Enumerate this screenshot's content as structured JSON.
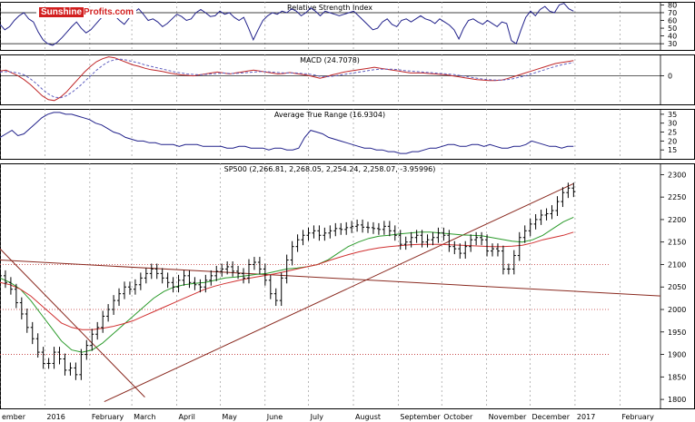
{
  "watermark": {
    "brand": "Sunshine",
    "suffix": "Profits.com",
    "color": "#d21f1f"
  },
  "chart_data": [
    {
      "panel": "rsi",
      "type": "line",
      "title": "Relative Strength Index",
      "ylim": [
        22,
        84
      ],
      "yticks": [
        30,
        40,
        50,
        60,
        70,
        80
      ],
      "ref_lines": [
        30,
        70
      ],
      "series": [
        {
          "color": "#20208a",
          "values": [
            55,
            48,
            52,
            60,
            66,
            70,
            62,
            58,
            45,
            35,
            30,
            28,
            32,
            38,
            45,
            52,
            58,
            50,
            44,
            48,
            55,
            62,
            68,
            72,
            66,
            60,
            55,
            63,
            70,
            75,
            68,
            60,
            62,
            58,
            52,
            56,
            62,
            68,
            65,
            60,
            62,
            70,
            74,
            70,
            65,
            66,
            72,
            68,
            70,
            64,
            60,
            64,
            50,
            35,
            48,
            60,
            66,
            70,
            68,
            72,
            70,
            75,
            72,
            66,
            70,
            76,
            72,
            66,
            72,
            70,
            68,
            66,
            68,
            70,
            72,
            66,
            60,
            54,
            48,
            50,
            58,
            62,
            55,
            52,
            60,
            62,
            58,
            62,
            66,
            62,
            60,
            56,
            62,
            58,
            54,
            48,
            36,
            50,
            60,
            62,
            58,
            55,
            60,
            56,
            52,
            58,
            56,
            34,
            30,
            48,
            64,
            72,
            66,
            74,
            78,
            72,
            70,
            80,
            82,
            75,
            72
          ]
        }
      ]
    },
    {
      "panel": "macd",
      "type": "line",
      "title": "MACD (24.7078)",
      "ylim": [
        -60,
        45
      ],
      "yticks": [
        0
      ],
      "series": [
        {
          "color": "#c0282a",
          "values": [
            10,
            12,
            6,
            0,
            -8,
            -18,
            -30,
            -42,
            -50,
            -52,
            -45,
            -34,
            -20,
            -6,
            8,
            20,
            30,
            36,
            40,
            38,
            33,
            28,
            23,
            20,
            16,
            13,
            11,
            9,
            6,
            4,
            2,
            1,
            0,
            2,
            4,
            6,
            8,
            6,
            4,
            6,
            8,
            10,
            12,
            10,
            8,
            6,
            4,
            5,
            7,
            5,
            3,
            1,
            -2,
            -5,
            -2,
            2,
            5,
            8,
            10,
            12,
            14,
            16,
            18,
            16,
            14,
            12,
            10,
            8,
            6,
            6,
            6,
            5,
            4,
            3,
            2,
            0,
            -2,
            -4,
            -6,
            -8,
            -9,
            -10,
            -10,
            -9,
            -6,
            -2,
            2,
            6,
            10,
            14,
            18,
            22,
            26,
            28,
            30,
            32
          ]
        },
        {
          "color": "#6060c0",
          "dashed": true,
          "values": [
            8,
            9,
            8,
            6,
            2,
            -6,
            -16,
            -28,
            -38,
            -45,
            -46,
            -42,
            -34,
            -24,
            -12,
            0,
            12,
            22,
            30,
            34,
            35,
            33,
            30,
            27,
            23,
            20,
            17,
            14,
            11,
            8,
            6,
            4,
            3,
            2,
            3,
            4,
            5,
            6,
            5,
            5,
            6,
            7,
            8,
            9,
            9,
            8,
            7,
            6,
            6,
            6,
            5,
            4,
            2,
            -1,
            -2,
            -1,
            1,
            3,
            5,
            7,
            9,
            11,
            13,
            14,
            14,
            14,
            13,
            11,
            10,
            9,
            8,
            7,
            6,
            5,
            4,
            3,
            1,
            -1,
            -3,
            -5,
            -7,
            -8,
            -9,
            -9,
            -8,
            -6,
            -3,
            0,
            4,
            8,
            12,
            16,
            20,
            23,
            26,
            28
          ]
        }
      ]
    },
    {
      "panel": "atr",
      "type": "line",
      "title": "Average True Range (16.9304)",
      "ylim": [
        10,
        38
      ],
      "yticks": [
        15,
        20,
        25,
        30,
        35
      ],
      "series": [
        {
          "color": "#20208a",
          "values": [
            22,
            24,
            26,
            23,
            24,
            27,
            30,
            33,
            35,
            36,
            36,
            35,
            35,
            34,
            33,
            32,
            30,
            29,
            27,
            25,
            24,
            22,
            21,
            20,
            20,
            19,
            19,
            18,
            18,
            18,
            17,
            18,
            18,
            18,
            17,
            17,
            17,
            17,
            16,
            16,
            17,
            17,
            16,
            16,
            16,
            15,
            16,
            16,
            15,
            15,
            16,
            22,
            26,
            25,
            24,
            22,
            21,
            20,
            19,
            18,
            17,
            16,
            16,
            15,
            15,
            14,
            14,
            13,
            13,
            14,
            14,
            15,
            16,
            16,
            17,
            18,
            18,
            17,
            17,
            18,
            18,
            17,
            18,
            17,
            16,
            16,
            17,
            17,
            18,
            20,
            19,
            18,
            17,
            17,
            16,
            17,
            17
          ]
        }
      ]
    },
    {
      "panel": "price",
      "type": "candlestick",
      "title": "SP500 (2,266.81, 2,268.05, 2,254.24, 2,258.07, -3.95996)",
      "ylim": [
        1780,
        2325
      ],
      "yticks": [
        1800,
        1850,
        1900,
        1950,
        2000,
        2050,
        2100,
        2150,
        2200,
        2250,
        2300
      ],
      "hlines": [
        1900,
        2000,
        2100
      ],
      "trendlines": [
        {
          "from": [
            "2015-12-01",
            2110
          ],
          "to": [
            "2017-03-01",
            2030
          ],
          "color": "#8a2a20"
        },
        {
          "from": [
            "2016-02-11",
            1795
          ],
          "to": [
            "2016-12-31",
            2280
          ],
          "color": "#8a2a20"
        },
        {
          "from": [
            "2015-12-01",
            2135
          ],
          "to": [
            "2016-03-10",
            1805
          ],
          "color": "#8a2a20"
        }
      ],
      "ma_series": [
        {
          "name": "",
          "color": "#2a9a2a",
          "values": [
            2070,
            2060,
            2045,
            2020,
            1990,
            1960,
            1930,
            1910,
            1905,
            1910,
            1925,
            1945,
            1965,
            1985,
            2005,
            2025,
            2040,
            2050,
            2055,
            2058,
            2060,
            2065,
            2070,
            2072,
            2075,
            2078,
            2080,
            2085,
            2090,
            2092,
            2095,
            2100,
            2110,
            2125,
            2140,
            2150,
            2158,
            2163,
            2165,
            2168,
            2170,
            2172,
            2172,
            2170,
            2168,
            2166,
            2165,
            2164,
            2160,
            2156,
            2152,
            2150,
            2155,
            2165,
            2180,
            2195,
            2205
          ]
        },
        {
          "name": "",
          "color": "#d03030",
          "values": [
            2060,
            2055,
            2045,
            2030,
            2010,
            1990,
            1970,
            1960,
            1955,
            1955,
            1958,
            1962,
            1968,
            1975,
            1985,
            1995,
            2005,
            2015,
            2025,
            2035,
            2045,
            2052,
            2058,
            2063,
            2068,
            2072,
            2076,
            2080,
            2085,
            2090,
            2095,
            2100,
            2108,
            2115,
            2122,
            2128,
            2133,
            2137,
            2140,
            2142,
            2144,
            2145,
            2145,
            2145,
            2144,
            2143,
            2142,
            2141,
            2140,
            2140,
            2141,
            2143,
            2148,
            2155,
            2160,
            2165,
            2172
          ]
        }
      ],
      "candles_close": [
        2075,
        2060,
        2045,
        2015,
        1990,
        1960,
        1935,
        1905,
        1880,
        1880,
        1905,
        1890,
        1865,
        1870,
        1855,
        1900,
        1920,
        1945,
        1960,
        1985,
        2000,
        2020,
        2035,
        2050,
        2045,
        2055,
        2070,
        2080,
        2090,
        2080,
        2070,
        2060,
        2050,
        2065,
        2075,
        2060,
        2055,
        2050,
        2065,
        2075,
        2085,
        2090,
        2095,
        2085,
        2080,
        2070,
        2100,
        2105,
        2090,
        2065,
        2035,
        2020,
        2070,
        2110,
        2140,
        2155,
        2165,
        2170,
        2175,
        2165,
        2170,
        2175,
        2180,
        2178,
        2182,
        2185,
        2188,
        2183,
        2182,
        2180,
        2178,
        2185,
        2175,
        2165,
        2145,
        2150,
        2160,
        2165,
        2150,
        2155,
        2160,
        2170,
        2165,
        2140,
        2135,
        2125,
        2140,
        2155,
        2160,
        2155,
        2130,
        2135,
        2130,
        2090,
        2090,
        2120,
        2160,
        2175,
        2190,
        2200,
        2210,
        2213,
        2220,
        2240,
        2260,
        2270,
        2262
      ],
      "x_dates": [
        "2015-12-01",
        "2016-12-31"
      ]
    }
  ],
  "x_axis": {
    "labels": [
      {
        "text": "ember",
        "date": "2015-12-01"
      },
      {
        "text": "2016",
        "date": "2016-01-01"
      },
      {
        "text": "February",
        "date": "2016-02-01"
      },
      {
        "text": "March",
        "date": "2016-03-01"
      },
      {
        "text": "April",
        "date": "2016-04-01"
      },
      {
        "text": "May",
        "date": "2016-05-01"
      },
      {
        "text": "June",
        "date": "2016-06-01"
      },
      {
        "text": "July",
        "date": "2016-07-01"
      },
      {
        "text": "August",
        "date": "2016-08-01"
      },
      {
        "text": "September",
        "date": "2016-09-01"
      },
      {
        "text": "October",
        "date": "2016-10-01"
      },
      {
        "text": "November",
        "date": "2016-11-01"
      },
      {
        "text": "December",
        "date": "2016-12-01"
      },
      {
        "text": "2017",
        "date": "2017-01-01"
      },
      {
        "text": "February",
        "date": "2017-02-01"
      }
    ]
  }
}
